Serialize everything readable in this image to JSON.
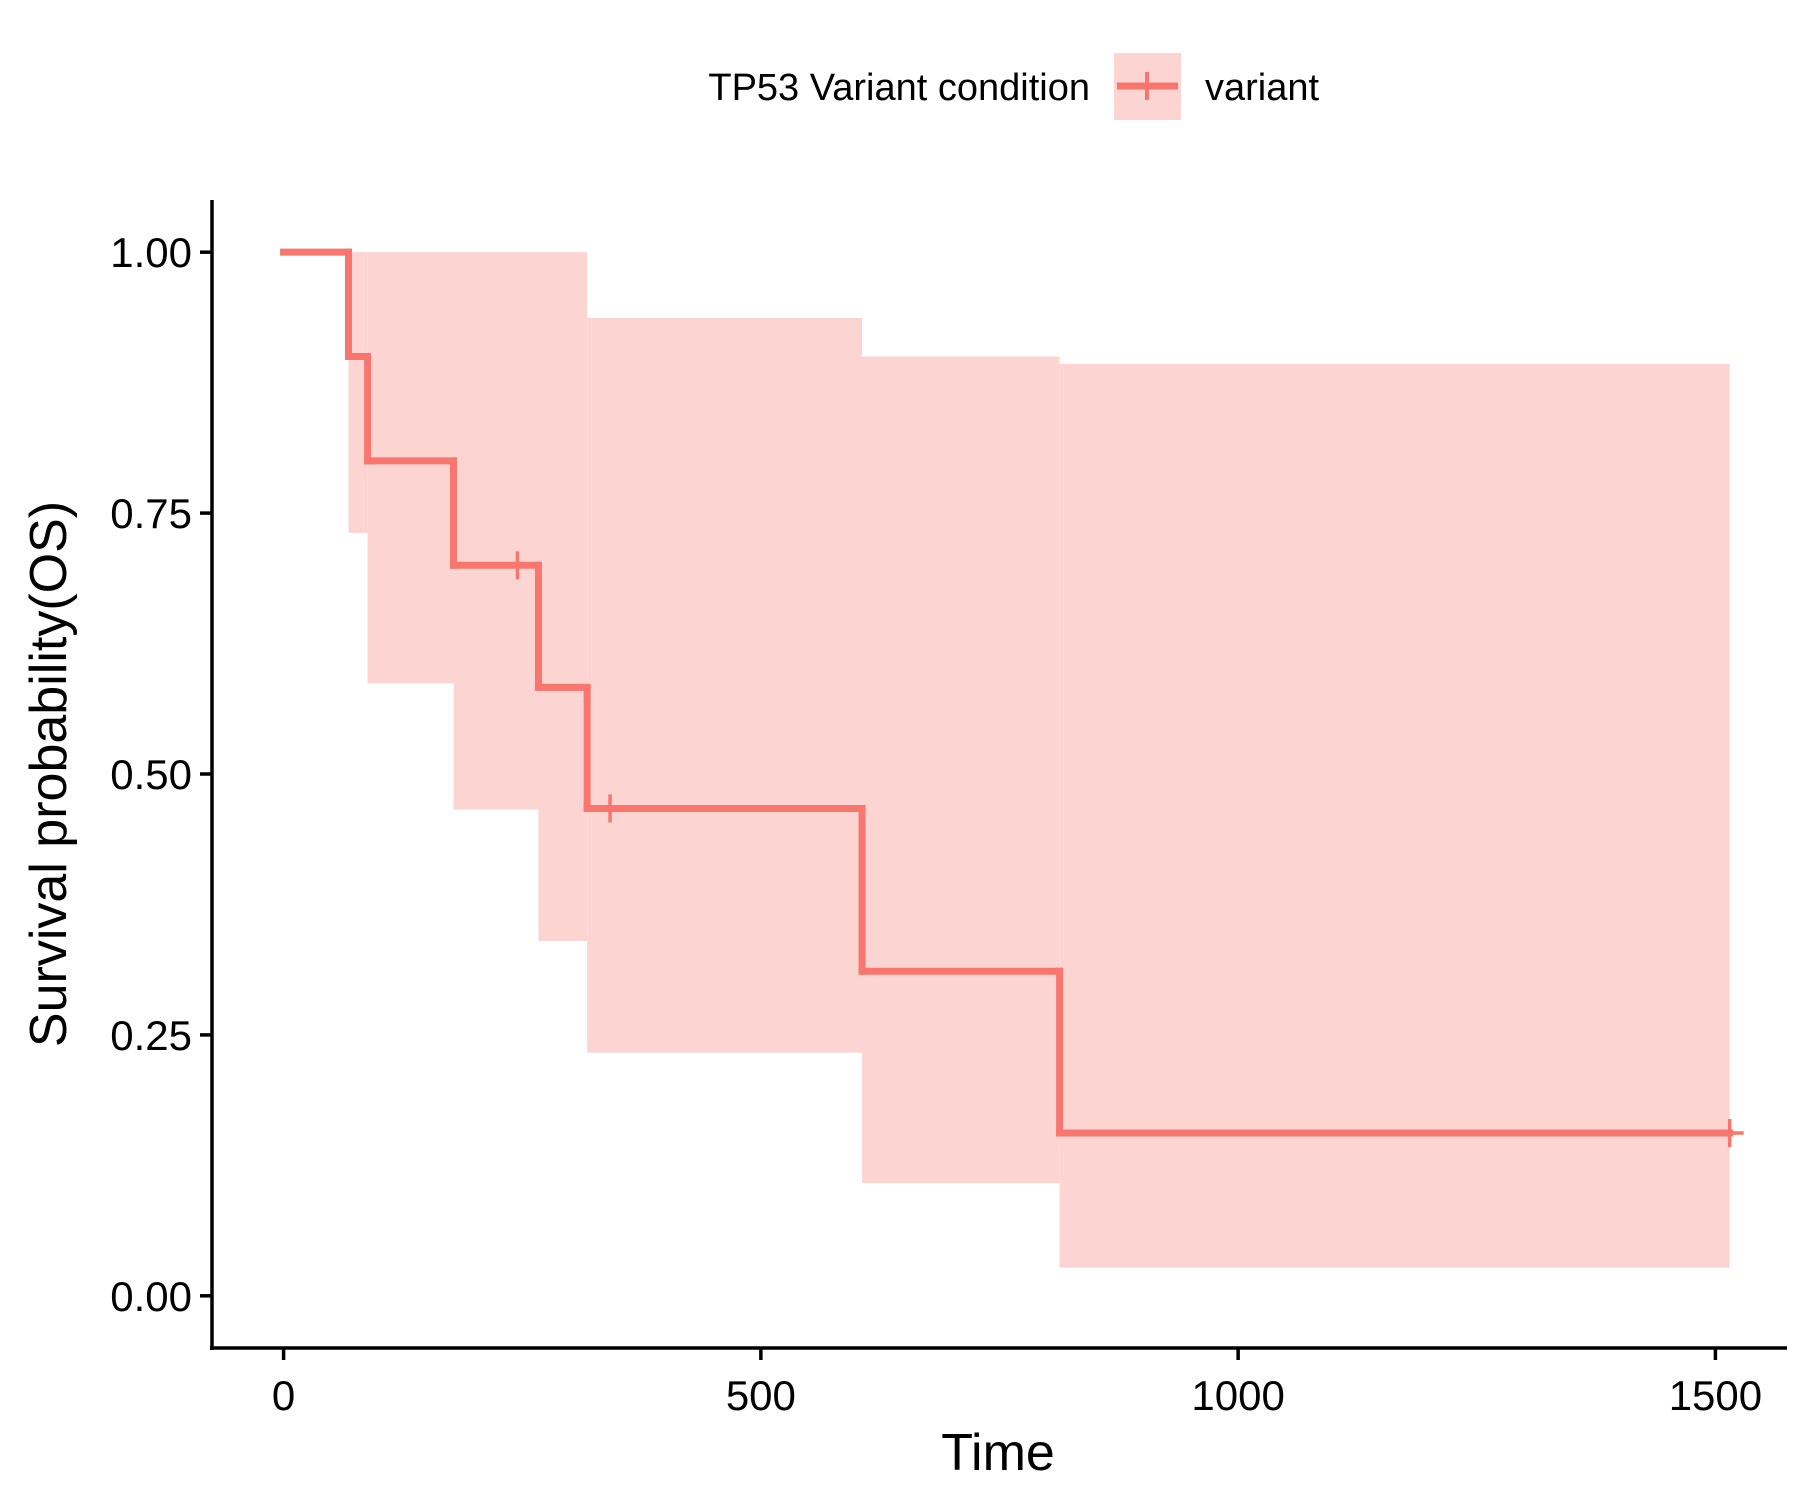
{
  "chart_data": {
    "type": "line",
    "subtype": "kaplan-meier",
    "xlabel": "Time",
    "ylabel": "Survival probability(OS)",
    "xlim": [
      -75,
      1575
    ],
    "ylim": [
      -0.05,
      1.05
    ],
    "x_ticks": [
      0,
      500,
      1000,
      1500
    ],
    "x_tick_labels": [
      "0",
      "500",
      "1000",
      "1500"
    ],
    "y_ticks": [
      0.0,
      0.25,
      0.5,
      0.75,
      1.0
    ],
    "y_tick_labels": [
      "0.00",
      "0.25",
      "0.50",
      "0.75",
      "1.00"
    ],
    "legend": {
      "title": "TP53 Variant condition",
      "position": "top",
      "entries": [
        "variant"
      ]
    },
    "series": [
      {
        "name": "variant",
        "color": "#F8766D",
        "band_color": "#FCD5D3",
        "steps": [
          {
            "x": 0,
            "y": 1.0,
            "lower": 1.0,
            "upper": 1.0
          },
          {
            "x": 68,
            "y": 0.9,
            "lower": 0.731,
            "upper": 1.0
          },
          {
            "x": 88,
            "y": 0.8,
            "lower": 0.587,
            "upper": 1.0
          },
          {
            "x": 178,
            "y": 0.7,
            "lower": 0.466,
            "upper": 1.0
          },
          {
            "x": 267,
            "y": 0.583,
            "lower": 0.34,
            "upper": 1.0
          },
          {
            "x": 318,
            "y": 0.467,
            "lower": 0.233,
            "upper": 0.937
          },
          {
            "x": 606,
            "y": 0.311,
            "lower": 0.108,
            "upper": 0.9
          },
          {
            "x": 813,
            "y": 0.156,
            "lower": 0.027,
            "upper": 0.893
          }
        ],
        "end_x": 1515,
        "censor_times": [
          245,
          342,
          1515
        ]
      }
    ]
  }
}
